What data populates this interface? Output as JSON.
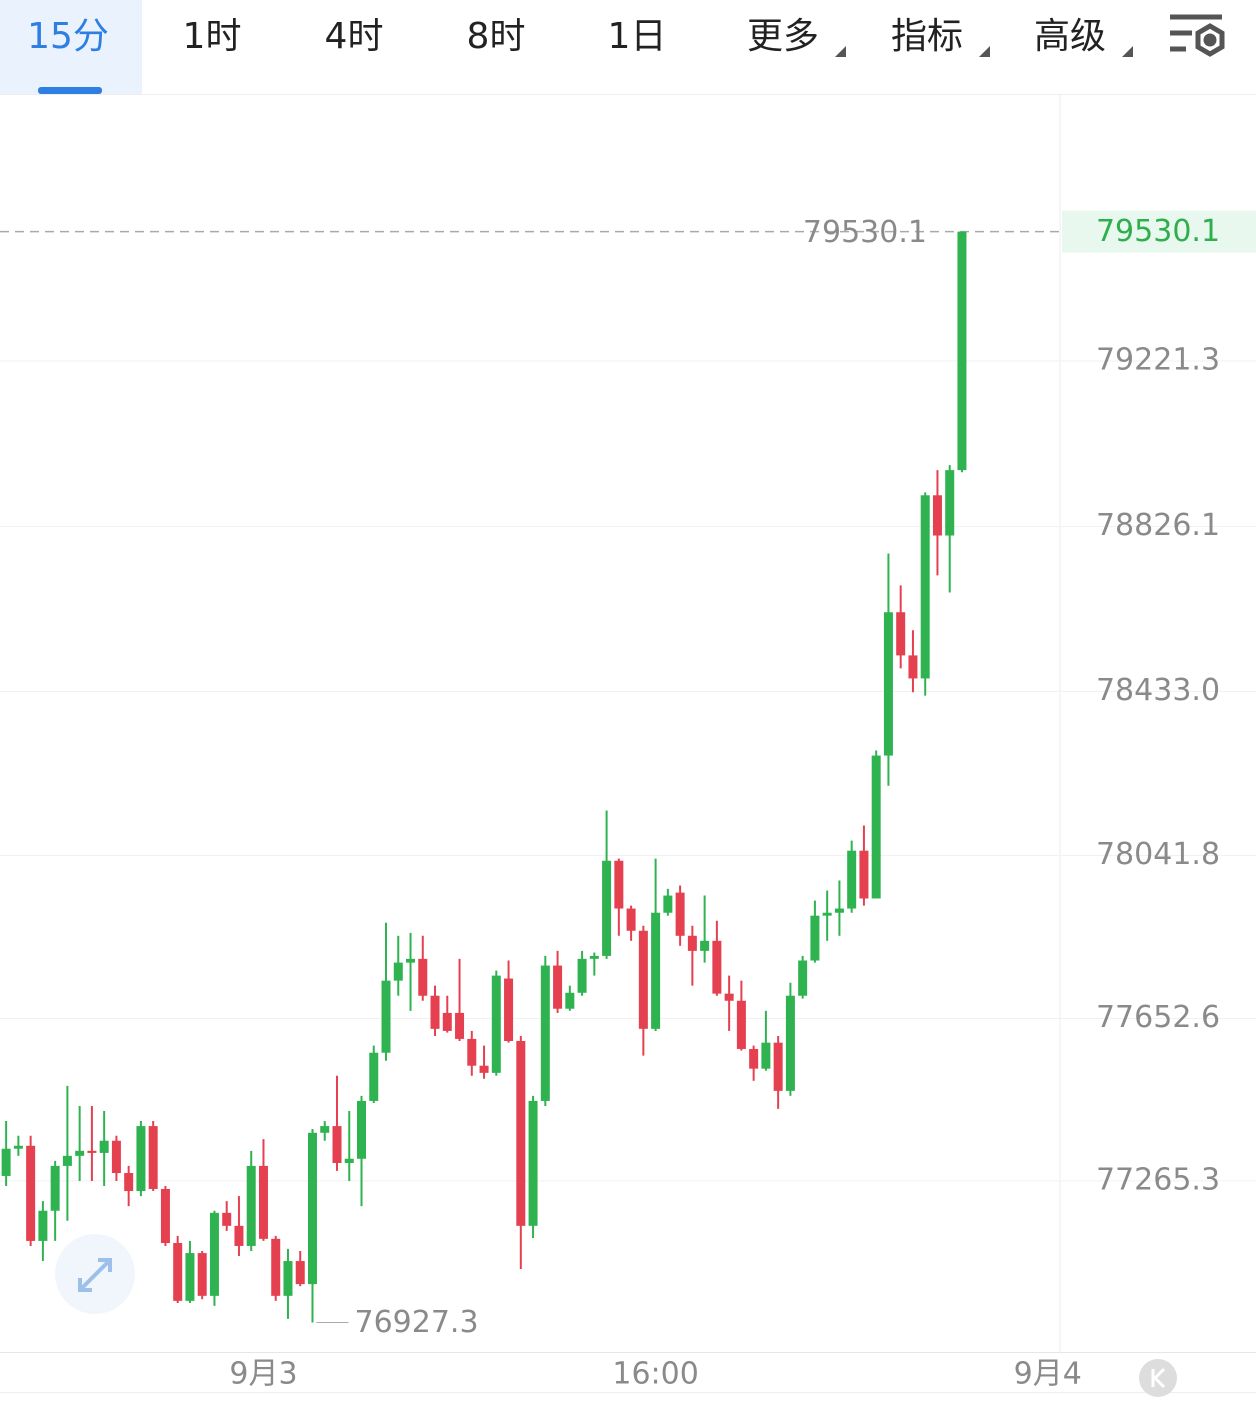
{
  "toolbar": {
    "tabs": [
      "15分",
      "1时",
      "4时",
      "8时",
      "1日",
      "更多",
      "指标",
      "高级"
    ],
    "active": 0
  },
  "chart_data": {
    "type": "candlestick",
    "up_color": "#2fb350",
    "down_color": "#e5404f",
    "xlim": [
      -0.5,
      86
    ],
    "xticks": [
      {
        "value": 21,
        "label": "9月3"
      },
      {
        "value": 53,
        "label": "16:00"
      },
      {
        "value": 85,
        "label": "9月4"
      }
    ],
    "ylim": [
      76857,
      79856
    ],
    "yticks": [
      79221.3,
      78826.1,
      {
        "value": 78433,
        "label": "78433.0"
      },
      78041.8,
      77652.6,
      77265.3
    ],
    "grid": true,
    "last_price": 79530.1,
    "high_marker": 79530.1,
    "low_marker": 76927.3,
    "open": [
      77277,
      77342,
      77349,
      77122,
      77194,
      77301,
      77325,
      77337,
      77332,
      77361,
      77284,
      77241,
      77396,
      77246,
      77117,
      76979,
      77093,
      76991,
      77189,
      77158,
      77110,
      77301,
      77127,
      76991,
      77074,
      77019,
      77380,
      77396,
      77308,
      77318,
      77456,
      77571,
      77743,
      77786,
      77795,
      77707,
      77666,
      77666,
      77604,
      77540,
      77523,
      77748,
      77599,
      77158,
      77456,
      77779,
      77676,
      77714,
      77795,
      77802,
      78029,
      77915,
      77862,
      77628,
      77905,
      77953,
      77850,
      77814,
      77838,
      77712,
      77695,
      77580,
      77533,
      77595,
      77480,
      77707,
      77791,
      77898,
      77905,
      77915,
      78053,
      77939,
      78280,
      78622,
      78519,
      78464,
      78901,
      78805,
      78961
    ],
    "high": [
      77408,
      77373,
      77373,
      77217,
      77313,
      77492,
      77444,
      77444,
      77432,
      77373,
      77301,
      77408,
      77408,
      77253,
      77134,
      77122,
      77098,
      77194,
      77217,
      77229,
      77337,
      77365,
      77134,
      77103,
      77098,
      77389,
      77408,
      77516,
      77432,
      77468,
      77588,
      77881,
      77850,
      77857,
      77850,
      77731,
      77707,
      77795,
      77623,
      77588,
      77767,
      77791,
      77611,
      77468,
      77802,
      77814,
      77731,
      77814,
      77810,
      78149,
      78034,
      77922,
      77874,
      78034,
      77962,
      77970,
      77874,
      77946,
      77886,
      77755,
      77743,
      77588,
      77671,
      77611,
      77738,
      77802,
      77934,
      77958,
      77982,
      78077,
      78113,
      78292,
      78762,
      78686,
      78579,
      78908,
      78961,
      78973,
      79530.1
    ],
    "low": [
      77253,
      77325,
      77110,
      77074,
      77122,
      77170,
      77265,
      77265,
      77253,
      77265,
      77205,
      77229,
      77241,
      77110,
      76974,
      76974,
      76983,
      76967,
      77146,
      77086,
      77098,
      77122,
      76979,
      76936,
      77014,
      76927.3,
      77361,
      77289,
      77265,
      77205,
      77451,
      77552,
      77707,
      77671,
      77695,
      77611,
      77619,
      77599,
      77516,
      77509,
      77516,
      77595,
      77055,
      77129,
      77444,
      77666,
      77671,
      77707,
      77755,
      77795,
      77850,
      77838,
      77564,
      77623,
      77898,
      77826,
      77731,
      77786,
      77707,
      77623,
      77576,
      77504,
      77528,
      77437,
      77468,
      77700,
      77786,
      77838,
      77850,
      77905,
      77922,
      77939,
      78208,
      78488,
      78431,
      78423,
      78710,
      78669,
      78956
    ],
    "close": [
      77342,
      77349,
      77122,
      77194,
      77301,
      77325,
      77337,
      77332,
      77361,
      77284,
      77241,
      77396,
      77246,
      77117,
      76979,
      77093,
      76991,
      77189,
      77158,
      77110,
      77301,
      77127,
      76991,
      77074,
      77019,
      77380,
      77396,
      77308,
      77318,
      77456,
      77571,
      77743,
      77786,
      77795,
      77707,
      77628,
      77623,
      77604,
      77540,
      77523,
      77755,
      77599,
      77158,
      77456,
      77779,
      77676,
      77714,
      77795,
      77802,
      78029,
      77915,
      77862,
      77628,
      77905,
      77946,
      77850,
      77814,
      77838,
      77712,
      77695,
      77580,
      77533,
      77595,
      77480,
      77707,
      77791,
      77898,
      77905,
      77915,
      78053,
      77939,
      78280,
      78622,
      78519,
      78464,
      78901,
      78805,
      78961,
      79530.1
    ]
  }
}
